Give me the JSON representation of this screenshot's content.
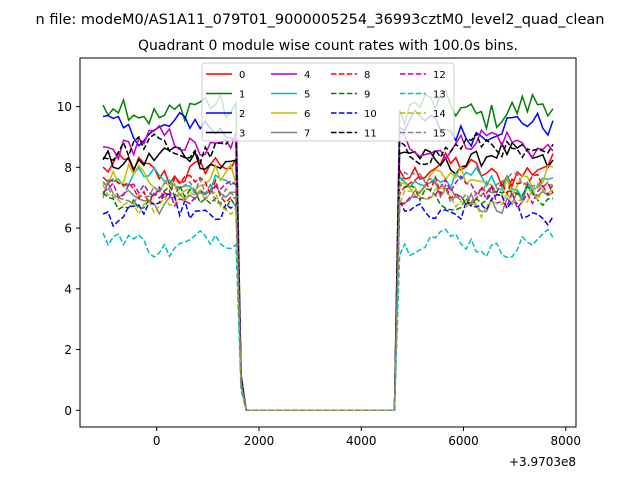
{
  "figure": {
    "suptitle": "n file: modeM0/AS1A11_079T01_9000005254_36993cztM0_level2_quad_clean",
    "offset_label": "+3.9703e8"
  },
  "chart_data": {
    "type": "line",
    "title": "Quadrant 0 module wise count rates with 100.0s bins.",
    "xlabel": "",
    "ylabel": "",
    "xlim": [
      -1500,
      8200
    ],
    "ylim": [
      -0.55,
      11.6
    ],
    "x_offset_label": "+3.9703e8",
    "xticks": [
      0,
      2000,
      4000,
      6000,
      8000
    ],
    "xtick_labels": [
      "0",
      "2000",
      "4000",
      "6000",
      "8000"
    ],
    "yticks": [
      0,
      2,
      4,
      6,
      8,
      10
    ],
    "ytick_labels": [
      "0",
      "2",
      "4",
      "6",
      "8",
      "10"
    ],
    "grid": false,
    "legend_position": "top-center",
    "legend_columns": 4,
    "x_start": -1050,
    "x_step": 100,
    "points_per_series": 89,
    "gap": {
      "rise_start": 1650,
      "zero_from": 1750,
      "zero_to": 4650,
      "rise_end": 4750
    },
    "series": [
      {
        "name": "0",
        "color": "#ff0000",
        "dash": "solid",
        "level": 7.9,
        "noise": 0.35
      },
      {
        "name": "1",
        "color": "#008000",
        "dash": "solid",
        "level": 9.9,
        "noise": 0.45
      },
      {
        "name": "2",
        "color": "#0000ff",
        "dash": "solid",
        "level": 9.3,
        "noise": 0.35
      },
      {
        "name": "3",
        "color": "#000000",
        "dash": "solid",
        "level": 8.3,
        "noise": 0.3
      },
      {
        "name": "4",
        "color": "#bf00bf",
        "dash": "solid",
        "level": 8.8,
        "noise": 0.35
      },
      {
        "name": "5",
        "color": "#00bfbf",
        "dash": "solid",
        "level": 7.5,
        "noise": 0.3
      },
      {
        "name": "6",
        "color": "#bfbf00",
        "dash": "solid",
        "level": 7.6,
        "noise": 0.35
      },
      {
        "name": "7",
        "color": "#808080",
        "dash": "solid",
        "level": 7.0,
        "noise": 0.3
      },
      {
        "name": "8",
        "color": "#ff0000",
        "dash": "dashed",
        "level": 7.3,
        "noise": 0.3
      },
      {
        "name": "9",
        "color": "#008000",
        "dash": "dashed",
        "level": 7.0,
        "noise": 0.25
      },
      {
        "name": "10",
        "color": "#0000ff",
        "dash": "dashed",
        "level": 6.6,
        "noise": 0.3
      },
      {
        "name": "11",
        "color": "#000000",
        "dash": "dashed",
        "level": 8.6,
        "noise": 0.3
      },
      {
        "name": "12",
        "color": "#bf00bf",
        "dash": "dashed",
        "level": 7.2,
        "noise": 0.3
      },
      {
        "name": "13",
        "color": "#00bfbf",
        "dash": "dashed",
        "level": 5.5,
        "noise": 0.3
      },
      {
        "name": "14",
        "color": "#bfbf00",
        "dash": "dashed",
        "level": 6.9,
        "noise": 0.3
      },
      {
        "name": "15",
        "color": "#808080",
        "dash": "dashed",
        "level": 7.3,
        "noise": 0.3
      }
    ]
  }
}
